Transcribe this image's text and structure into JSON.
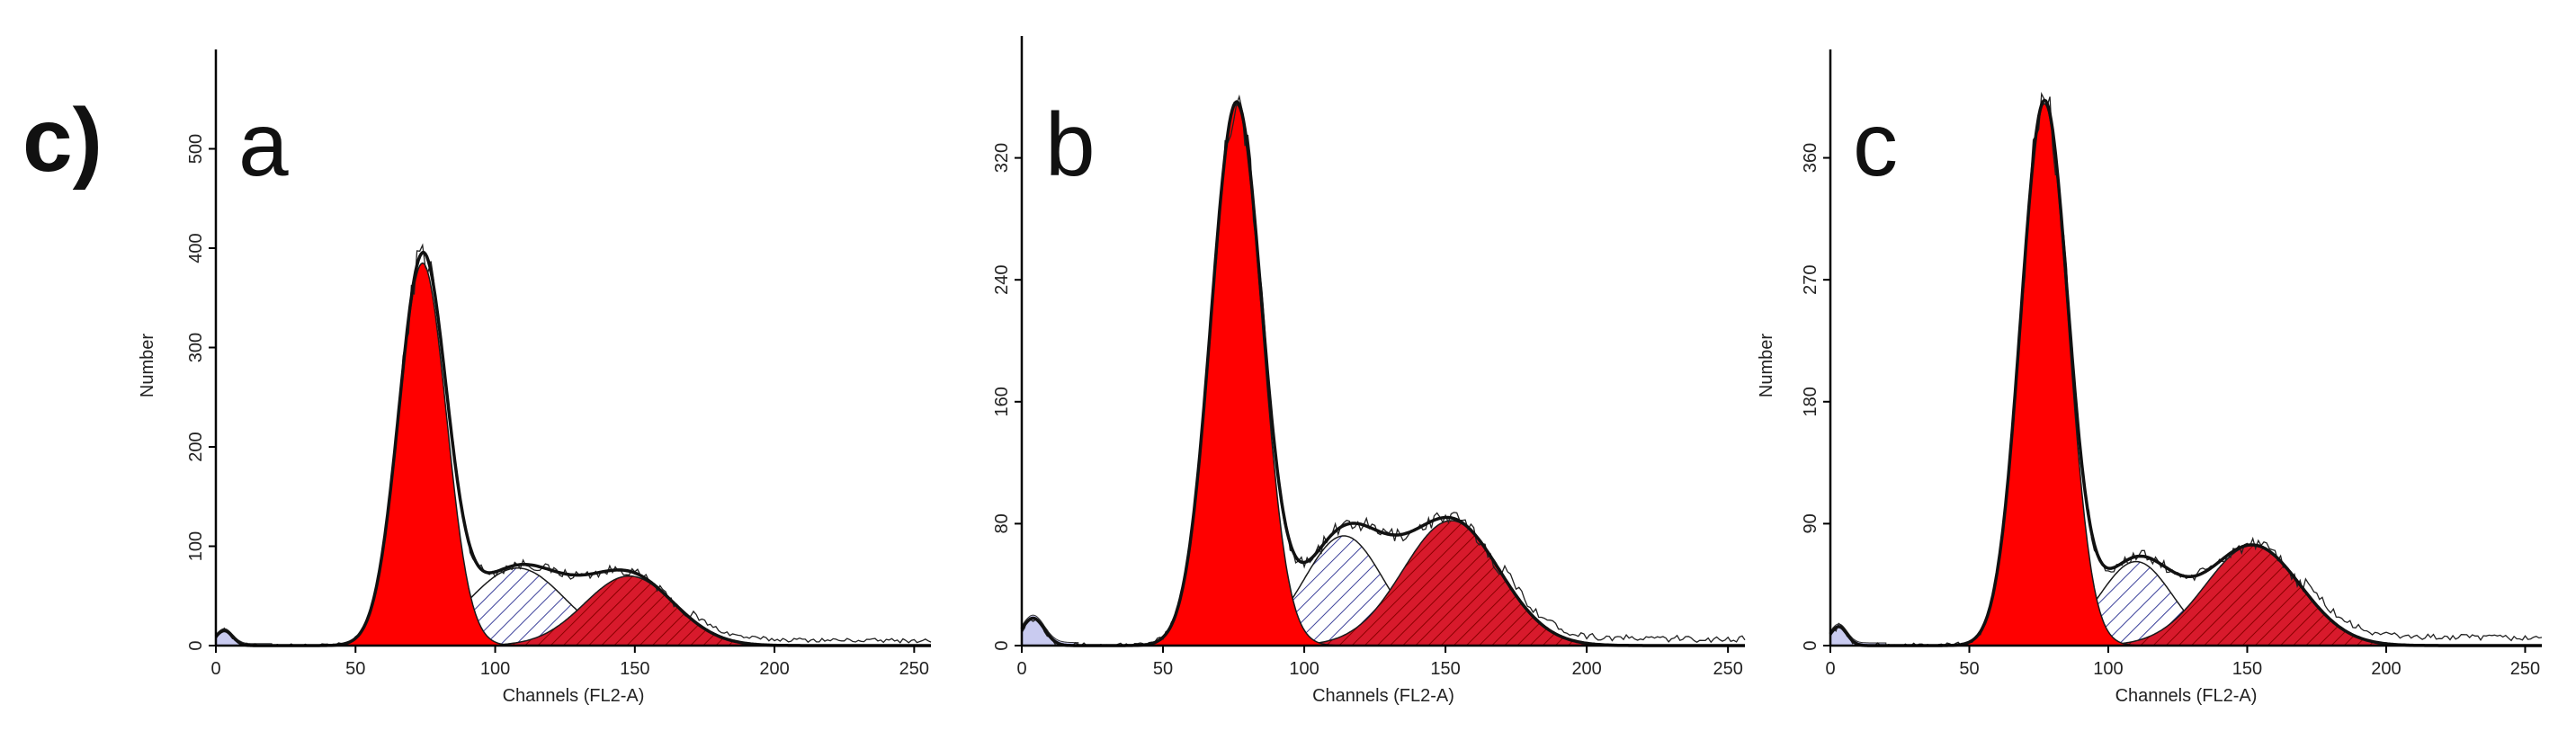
{
  "figure_label": "c)",
  "colors": {
    "g1": "#ff0000",
    "sphase_hatch": "#3a3f9a",
    "g2_hatch": "#8b0000",
    "debris": "#c9cbf0"
  },
  "chart_data": [
    {
      "type": "area",
      "panel": "a",
      "xlabel": "Channels (FL2-A)",
      "ylabel": "Number",
      "xlim": [
        0,
        256
      ],
      "ylim": [
        0,
        600
      ],
      "xticks": [
        0,
        50,
        100,
        150,
        200,
        250
      ],
      "yticks": [
        0,
        100,
        200,
        300,
        400,
        500
      ],
      "series": [
        {
          "role": "g1",
          "peak_x": 74,
          "peak_y": 385,
          "sigma": 8.5
        },
        {
          "role": "s",
          "peak_x": 108,
          "peak_y": 78,
          "sigma": 17
        },
        {
          "role": "g2",
          "peak_x": 148,
          "peak_y": 70,
          "sigma": 16
        },
        {
          "role": "debris",
          "peak_x": 3,
          "peak_y": 15,
          "sigma": 3
        }
      ],
      "tail_level": 7
    },
    {
      "type": "area",
      "panel": "b",
      "xlabel": "Channels (FL2-A)",
      "ylabel": "",
      "xlim": [
        0,
        256
      ],
      "ylim": [
        0,
        400
      ],
      "xticks": [
        0,
        50,
        100,
        150,
        200,
        250
      ],
      "yticks": [
        0,
        80,
        160,
        240,
        320
      ],
      "series": [
        {
          "role": "g1",
          "peak_x": 76,
          "peak_y": 355,
          "sigma": 9
        },
        {
          "role": "s",
          "peak_x": 114,
          "peak_y": 72,
          "sigma": 14
        },
        {
          "role": "g2",
          "peak_x": 152,
          "peak_y": 82,
          "sigma": 17
        },
        {
          "role": "debris",
          "peak_x": 4,
          "peak_y": 18,
          "sigma": 4
        }
      ],
      "tail_level": 6
    },
    {
      "type": "area",
      "panel": "c",
      "xlabel": "Channels (FL2-A)",
      "ylabel": "Number",
      "xlim": [
        0,
        256
      ],
      "ylim": [
        0,
        440
      ],
      "xticks": [
        0,
        50,
        100,
        150,
        200,
        250
      ],
      "yticks": [
        0,
        90,
        180,
        270,
        360
      ],
      "series": [
        {
          "role": "g1",
          "peak_x": 77,
          "peak_y": 400,
          "sigma": 8.5
        },
        {
          "role": "s",
          "peak_x": 110,
          "peak_y": 62,
          "sigma": 13
        },
        {
          "role": "g2",
          "peak_x": 152,
          "peak_y": 74,
          "sigma": 17
        },
        {
          "role": "debris",
          "peak_x": 3,
          "peak_y": 14,
          "sigma": 3
        }
      ],
      "tail_level": 8
    }
  ]
}
